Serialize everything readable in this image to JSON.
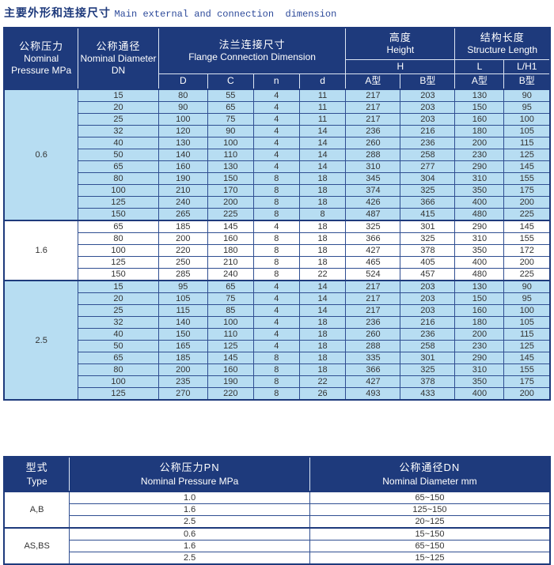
{
  "page_title": {
    "zh": "主要外形和连接尺寸",
    "en": "Main external and connection  dimension"
  },
  "colors": {
    "header_navy": "#1e3a7c",
    "row_light_blue": "#b7ddf2",
    "title_blue": "#1e3a7c",
    "body_text": "#333333"
  },
  "main_table": {
    "header": {
      "pressure_zh": "公称压力",
      "pressure_en": "Nominal Pressure MPa",
      "diameter_zh": "公称通径",
      "diameter_en": "Nominal Diameter DN",
      "flange_zh": "法兰连接尺寸",
      "flange_en": "Flange Connection Dimension",
      "height_zh": "高度",
      "height_en": "Height",
      "length_zh": "结构长度",
      "length_en": "Structure Length",
      "sub_h": "H",
      "sub_l": "L",
      "sub_lh1": "L/H1",
      "col_d": "D",
      "col_c": "C",
      "col_n": "n",
      "col_dd": "d",
      "type_a_h": "A型",
      "type_b_h": "B型",
      "type_a_l": "A型",
      "type_b_l": "B型"
    },
    "groups": [
      {
        "pressure": "0.6",
        "rows": [
          [
            "15",
            "80",
            "55",
            "4",
            "11",
            "217",
            "203",
            "130",
            "90"
          ],
          [
            "20",
            "90",
            "65",
            "4",
            "11",
            "217",
            "203",
            "150",
            "95"
          ],
          [
            "25",
            "100",
            "75",
            "4",
            "11",
            "217",
            "203",
            "160",
            "100"
          ],
          [
            "32",
            "120",
            "90",
            "4",
            "14",
            "236",
            "216",
            "180",
            "105"
          ],
          [
            "40",
            "130",
            "100",
            "4",
            "14",
            "260",
            "236",
            "200",
            "115"
          ],
          [
            "50",
            "140",
            "110",
            "4",
            "14",
            "288",
            "258",
            "230",
            "125"
          ],
          [
            "65",
            "160",
            "130",
            "4",
            "14",
            "310",
            "277",
            "290",
            "145"
          ],
          [
            "80",
            "190",
            "150",
            "8",
            "18",
            "345",
            "304",
            "310",
            "155"
          ],
          [
            "100",
            "210",
            "170",
            "8",
            "18",
            "374",
            "325",
            "350",
            "175"
          ],
          [
            "125",
            "240",
            "200",
            "8",
            "18",
            "426",
            "366",
            "400",
            "200"
          ],
          [
            "150",
            "265",
            "225",
            "8",
            "8",
            "487",
            "415",
            "480",
            "225"
          ]
        ]
      },
      {
        "pressure": "1.6",
        "rows": [
          [
            "65",
            "185",
            "145",
            "4",
            "18",
            "325",
            "301",
            "290",
            "145"
          ],
          [
            "80",
            "200",
            "160",
            "8",
            "18",
            "366",
            "325",
            "310",
            "155"
          ],
          [
            "100",
            "220",
            "180",
            "8",
            "18",
            "427",
            "378",
            "350",
            "172"
          ],
          [
            "125",
            "250",
            "210",
            "8",
            "18",
            "465",
            "405",
            "400",
            "200"
          ],
          [
            "150",
            "285",
            "240",
            "8",
            "22",
            "524",
            "457",
            "480",
            "225"
          ]
        ]
      },
      {
        "pressure": "2.5",
        "rows": [
          [
            "15",
            "95",
            "65",
            "4",
            "14",
            "217",
            "203",
            "130",
            "90"
          ],
          [
            "20",
            "105",
            "75",
            "4",
            "14",
            "217",
            "203",
            "150",
            "95"
          ],
          [
            "25",
            "115",
            "85",
            "4",
            "14",
            "217",
            "203",
            "160",
            "100"
          ],
          [
            "32",
            "140",
            "100",
            "4",
            "18",
            "236",
            "216",
            "180",
            "105"
          ],
          [
            "40",
            "150",
            "110",
            "4",
            "18",
            "260",
            "236",
            "200",
            "115"
          ],
          [
            "50",
            "165",
            "125",
            "4",
            "18",
            "288",
            "258",
            "230",
            "125"
          ],
          [
            "65",
            "185",
            "145",
            "8",
            "18",
            "335",
            "301",
            "290",
            "145"
          ],
          [
            "80",
            "200",
            "160",
            "8",
            "18",
            "366",
            "325",
            "310",
            "155"
          ],
          [
            "100",
            "235",
            "190",
            "8",
            "22",
            "427",
            "378",
            "350",
            "175"
          ],
          [
            "125",
            "270",
            "220",
            "8",
            "26",
            "493",
            "433",
            "400",
            "200"
          ]
        ]
      }
    ]
  },
  "type_table": {
    "header": {
      "type_zh": "型式",
      "type_en": "Type",
      "pn_zh": "公称压力PN",
      "pn_en": "Nominal Pressure MPa",
      "dn_zh": "公称通径DN",
      "dn_en": "Nominal Diameter mm"
    },
    "groups": [
      {
        "type": "A,B",
        "rows": [
          [
            "1.0",
            "65~150"
          ],
          [
            "1.6",
            "125~150"
          ],
          [
            "2.5",
            "20~125"
          ]
        ]
      },
      {
        "type": "AS,BS",
        "rows": [
          [
            "0.6",
            "15~150"
          ],
          [
            "1.6",
            "65~150"
          ],
          [
            "2.5",
            "15~125"
          ]
        ]
      }
    ]
  }
}
